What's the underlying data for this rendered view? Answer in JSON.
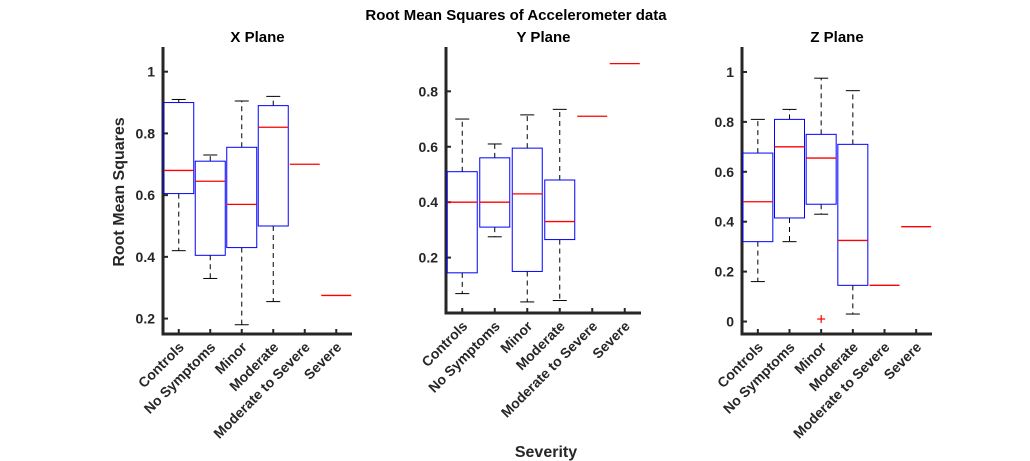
{
  "title": "Root Mean Squares of Accelerometer data",
  "ylabel": "Root Mean Squares",
  "xlabel": "Severity",
  "colors": {
    "box": "#0000ff",
    "median": "#ff0000",
    "whisker": "#000000",
    "axis": "#262626",
    "outlier": "#ff0000"
  },
  "chart_data": [
    {
      "type": "box",
      "title": "X Plane",
      "categories": [
        "Controls",
        "No Symptoms",
        "Minor",
        "Moderate",
        "Moderate to Severe",
        "Severe"
      ],
      "ylim": [
        0.15,
        1.08
      ],
      "yticks": [
        0.2,
        0.4,
        0.6,
        0.8,
        1
      ],
      "yticklabels": [
        "0.2",
        "0.4",
        "0.6",
        "0.8",
        "1"
      ],
      "boxes": [
        {
          "min": 0.42,
          "q1": 0.605,
          "median": 0.68,
          "q3": 0.9,
          "max": 0.91
        },
        {
          "min": 0.33,
          "q1": 0.405,
          "median": 0.645,
          "q3": 0.71,
          "max": 0.73
        },
        {
          "min": 0.18,
          "q1": 0.43,
          "median": 0.57,
          "q3": 0.755,
          "max": 0.905
        },
        {
          "min": 0.255,
          "q1": 0.5,
          "median": 0.82,
          "q3": 0.89,
          "max": 0.92
        },
        {
          "min": 0.7,
          "q1": 0.7,
          "median": 0.7,
          "q3": 0.7,
          "max": 0.7
        },
        {
          "min": 0.275,
          "q1": 0.275,
          "median": 0.275,
          "q3": 0.275,
          "max": 0.275
        }
      ],
      "outliers": []
    },
    {
      "type": "box",
      "title": "Y Plane",
      "categories": [
        "Controls",
        "No Symptoms",
        "Minor",
        "Moderate",
        "Moderate to Severe",
        "Severe"
      ],
      "ylim": [
        0.0,
        0.96
      ],
      "yticks": [
        0.2,
        0.4,
        0.6,
        0.8
      ],
      "yticklabels": [
        "0.2",
        "0.4",
        "0.6",
        "0.8"
      ],
      "boxes": [
        {
          "min": 0.07,
          "q1": 0.145,
          "median": 0.4,
          "q3": 0.51,
          "max": 0.7
        },
        {
          "min": 0.275,
          "q1": 0.31,
          "median": 0.4,
          "q3": 0.56,
          "max": 0.61
        },
        {
          "min": 0.04,
          "q1": 0.15,
          "median": 0.43,
          "q3": 0.595,
          "max": 0.715
        },
        {
          "min": 0.045,
          "q1": 0.265,
          "median": 0.33,
          "q3": 0.48,
          "max": 0.735
        },
        {
          "min": 0.71,
          "q1": 0.71,
          "median": 0.71,
          "q3": 0.71,
          "max": 0.71
        },
        {
          "min": 0.9,
          "q1": 0.9,
          "median": 0.9,
          "q3": 0.9,
          "max": 0.9
        }
      ],
      "outliers": []
    },
    {
      "type": "box",
      "title": "Z Plane",
      "categories": [
        "Controls",
        "No Symptoms",
        "Minor",
        "Moderate",
        "Moderate to Severe",
        "Severe"
      ],
      "ylim": [
        -0.05,
        1.1
      ],
      "yticks": [
        0,
        0.2,
        0.4,
        0.6,
        0.8,
        1
      ],
      "yticklabels": [
        "0",
        "0.2",
        "0.4",
        "0.6",
        "0.8",
        "1"
      ],
      "boxes": [
        {
          "min": 0.16,
          "q1": 0.32,
          "median": 0.48,
          "q3": 0.675,
          "max": 0.81
        },
        {
          "min": 0.32,
          "q1": 0.415,
          "median": 0.7,
          "q3": 0.81,
          "max": 0.85
        },
        {
          "min": 0.43,
          "q1": 0.47,
          "median": 0.655,
          "q3": 0.75,
          "max": 0.975
        },
        {
          "min": 0.03,
          "q1": 0.145,
          "median": 0.325,
          "q3": 0.71,
          "max": 0.925
        },
        {
          "min": 0.145,
          "q1": 0.145,
          "median": 0.145,
          "q3": 0.145,
          "max": 0.145
        },
        {
          "min": 0.38,
          "q1": 0.38,
          "median": 0.38,
          "q3": 0.38,
          "max": 0.38
        }
      ],
      "outliers": [
        {
          "category": "Minor",
          "value": 0.01
        }
      ]
    }
  ]
}
